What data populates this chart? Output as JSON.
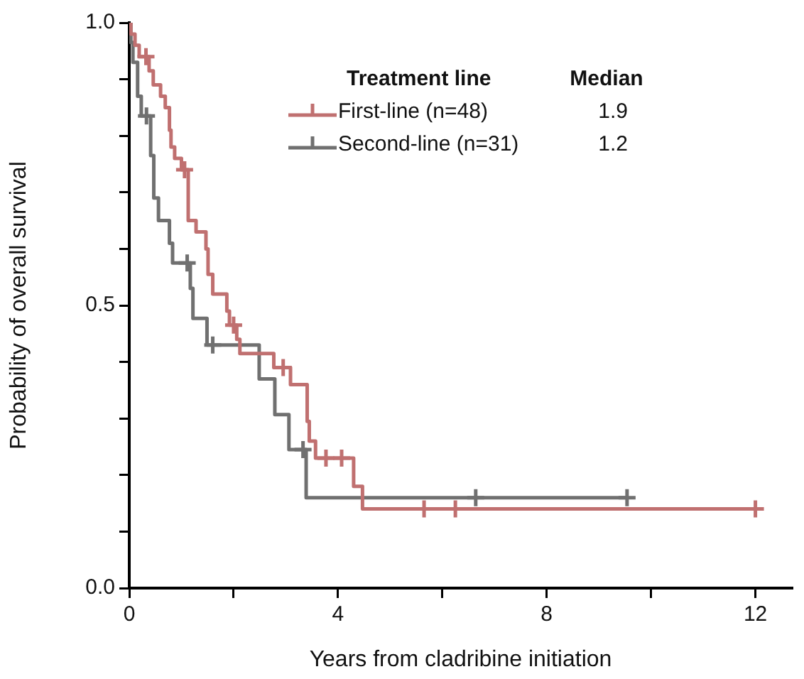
{
  "chart_data": {
    "type": "step",
    "xlabel": "Years from cladribine initiation",
    "ylabel": "Probability of overall survival",
    "legend_title": "Treatment line",
    "annotations": [
      "Median",
      "1.9",
      "1.2"
    ],
    "xlim": [
      0,
      12.7
    ],
    "xticks": [
      0,
      {
        "value": 2,
        "label": null
      },
      4,
      {
        "value": 6,
        "label": null
      },
      8,
      {
        "value": 10,
        "label": null
      },
      12
    ],
    "ylim": [
      0,
      1.0
    ],
    "yticks": [
      {
        "value": 0,
        "label": "0.0"
      },
      {
        "value": 0.1,
        "label": null
      },
      {
        "value": 0.2,
        "label": null
      },
      {
        "value": 0.3,
        "label": null
      },
      {
        "value": 0.4,
        "label": null
      },
      {
        "value": 0.5,
        "label": "0.5"
      },
      {
        "value": 0.6,
        "label": null
      },
      {
        "value": 0.7,
        "label": null
      },
      {
        "value": 0.8,
        "label": null
      },
      {
        "value": 0.9,
        "label": null
      },
      {
        "value": 1.0,
        "label": "1.0"
      }
    ],
    "grid": false,
    "legend": "top",
    "line_style": "solid",
    "series": [
      {
        "name": "First-line (n=48)",
        "color": "#c07070",
        "x": [
          0,
          0.03,
          0.11,
          0.19,
          0.38,
          0.46,
          0.6,
          0.69,
          0.77,
          0.8,
          0.87,
          1.0,
          1.13,
          1.28,
          1.47,
          1.51,
          1.6,
          1.87,
          1.92,
          2.06,
          2.12,
          2.77,
          3.09,
          3.41,
          3.45,
          3.57,
          4.3,
          4.47,
          12.0
        ],
        "values": [
          1.0,
          0.98,
          0.96,
          0.94,
          0.915,
          0.89,
          0.87,
          0.85,
          0.81,
          0.78,
          0.76,
          0.74,
          0.65,
          0.63,
          0.6,
          0.555,
          0.52,
          0.49,
          0.465,
          0.44,
          0.415,
          0.39,
          0.36,
          0.295,
          0.26,
          0.23,
          0.18,
          0.14,
          0.14
        ]
      },
      {
        "type": "scatter",
        "marker": "cross",
        "color": "#c07070",
        "x": [
          0.32,
          1.06,
          2.0,
          2.95,
          3.77,
          4.07,
          5.65,
          6.25,
          12.0
        ],
        "values": [
          0.94,
          0.74,
          0.465,
          0.39,
          0.23,
          0.23,
          0.14,
          0.14,
          0.14
        ]
      },
      {
        "name": "Second-line (n=31)",
        "color": "#707070",
        "x": [
          0,
          0.03,
          0.07,
          0.16,
          0.23,
          0.41,
          0.47,
          0.56,
          0.77,
          0.83,
          1.17,
          1.22,
          1.49,
          2.49,
          2.79,
          3.06,
          3.39,
          9.54
        ],
        "values": [
          1.0,
          0.965,
          0.93,
          0.87,
          0.835,
          0.765,
          0.69,
          0.65,
          0.61,
          0.575,
          0.53,
          0.477,
          0.43,
          0.37,
          0.307,
          0.245,
          0.16,
          0.16
        ]
      },
      {
        "type": "scatter",
        "marker": "cross",
        "color": "#707070",
        "x": [
          0.33,
          1.11,
          1.6,
          3.33,
          6.64,
          9.54
        ],
        "values": [
          0.835,
          0.575,
          0.43,
          0.245,
          0.16,
          0.16
        ]
      }
    ]
  }
}
